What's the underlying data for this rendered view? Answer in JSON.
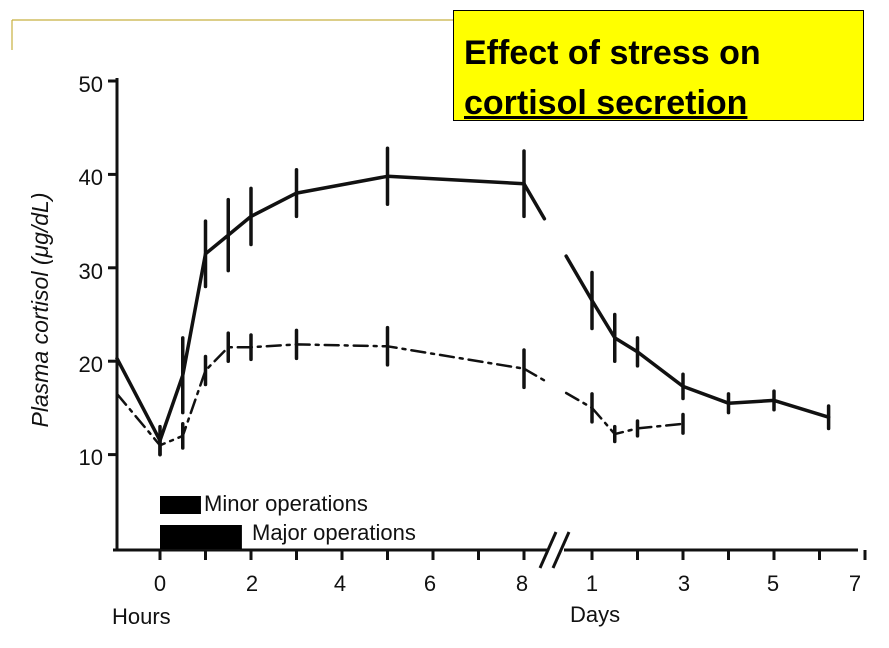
{
  "slide": {
    "title_line1": "Effect of stress on",
    "title_line2": "cortisol secretion",
    "accent_line_color": "#c8b040",
    "title_bg_color": "#ffff00"
  },
  "chart_data": {
    "type": "line",
    "title": "Effect of stress on cortisol secretion",
    "ylabel": "Plasma cortisol (μg/dL)",
    "ylim": [
      0,
      50
    ],
    "yticks": [
      "10",
      "20",
      "30",
      "40",
      "50"
    ],
    "ytick_values": [
      10,
      20,
      30,
      40,
      50
    ],
    "x_segments": [
      {
        "unit_label": "Hours",
        "ticks": [
          "0",
          "2",
          "4",
          "6",
          "8"
        ],
        "tick_values": [
          0,
          2,
          4,
          6,
          8
        ],
        "xlim": [
          -1,
          8.2
        ]
      },
      {
        "unit_label": "Days",
        "ticks": [
          "1",
          "3",
          "5",
          "7"
        ],
        "tick_values": [
          1,
          3,
          5,
          7
        ],
        "xlim": [
          0,
          7
        ]
      }
    ],
    "legend_bars": [
      {
        "label": "Minor operations",
        "start_hours": 0,
        "end_hours": 0.9
      },
      {
        "label": "Major operations",
        "start_hours": 0,
        "end_hours": 1.8
      }
    ],
    "series": [
      {
        "name": "Major operations",
        "style": "solid",
        "hours": {
          "x": [
            -1,
            0,
            0.5,
            1,
            1.5,
            2,
            3,
            5,
            8
          ],
          "y": [
            20.3,
            11.5,
            18.5,
            31.5,
            33.5,
            35.5,
            38.0,
            39.8,
            39.0
          ]
        },
        "days": {
          "x": [
            1,
            1.5,
            2,
            3,
            4,
            5,
            6.2
          ],
          "y": [
            26.5,
            22.5,
            21.0,
            17.3,
            15.5,
            15.8,
            14.0
          ]
        },
        "error_hours": [
          0,
          1.5,
          4.0,
          3.5,
          3.8,
          3.0,
          2.5,
          3.0,
          3.5
        ],
        "error_days": [
          3.0,
          2.5,
          1.5,
          1.3,
          1.0,
          1.0,
          1.2
        ]
      },
      {
        "name": "Minor operations",
        "style": "dash-dot",
        "hours": {
          "x": [
            -1,
            0,
            0.5,
            1,
            1.5,
            2,
            3,
            5,
            8
          ],
          "y": [
            16.5,
            11.0,
            12.0,
            19.0,
            21.5,
            21.5,
            21.8,
            21.6,
            19.2
          ]
        },
        "days": {
          "x": [
            1,
            1.5,
            2,
            3
          ],
          "y": [
            15.0,
            12.2,
            12.8,
            13.3
          ]
        },
        "error_hours": [
          0,
          1.0,
          1.3,
          1.5,
          1.5,
          1.3,
          1.5,
          2.0,
          2.0
        ],
        "error_days": [
          1.5,
          0.8,
          0.8,
          1.0
        ]
      }
    ]
  }
}
